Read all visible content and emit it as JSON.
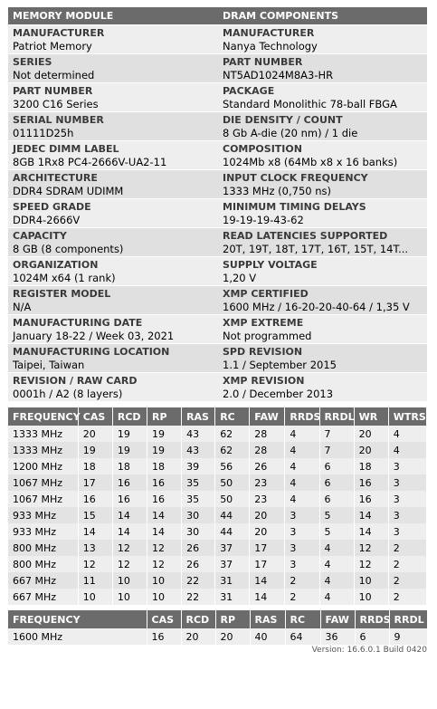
{
  "memory_module": {
    "title": "MEMORY MODULE",
    "fields": [
      {
        "label": "MANUFACTURER",
        "value": "Patriot Memory"
      },
      {
        "label": "SERIES",
        "value": "Not determined"
      },
      {
        "label": "PART NUMBER",
        "value": "3200 C16 Series"
      },
      {
        "label": "SERIAL NUMBER",
        "value": "01111D25h"
      },
      {
        "label": "JEDEC DIMM LABEL",
        "value": "8GB 1Rx8 PC4-2666V-UA2-11"
      },
      {
        "label": "ARCHITECTURE",
        "value": "DDR4 SDRAM UDIMM"
      },
      {
        "label": "SPEED GRADE",
        "value": "DDR4-2666V"
      },
      {
        "label": "CAPACITY",
        "value": "8 GB (8 components)"
      },
      {
        "label": "ORGANIZATION",
        "value": "1024M x64 (1 rank)"
      },
      {
        "label": "REGISTER MODEL",
        "value": "N/A"
      },
      {
        "label": "MANUFACTURING DATE",
        "value": "January 18-22 / Week 03, 2021"
      },
      {
        "label": "MANUFACTURING LOCATION",
        "value": "Taipei, Taiwan"
      },
      {
        "label": "REVISION / RAW CARD",
        "value": "0001h / A2 (8 layers)"
      }
    ]
  },
  "dram_components": {
    "title": "DRAM COMPONENTS",
    "fields": [
      {
        "label": "MANUFACTURER",
        "value": "Nanya Technology"
      },
      {
        "label": "PART NUMBER",
        "value": "NT5AD1024M8A3-HR"
      },
      {
        "label": "PACKAGE",
        "value": "Standard Monolithic 78-ball FBGA"
      },
      {
        "label": "DIE DENSITY / COUNT",
        "value": "8 Gb A-die (20 nm) / 1 die"
      },
      {
        "label": "COMPOSITION",
        "value": "1024Mb x8 (64Mb x8 x 16 banks)"
      },
      {
        "label": "INPUT CLOCK FREQUENCY",
        "value": "1333 MHz (0,750 ns)"
      },
      {
        "label": "MINIMUM TIMING DELAYS",
        "value": "19-19-19-43-62"
      },
      {
        "label": "READ LATENCIES SUPPORTED",
        "value": "20T, 19T, 18T, 17T, 16T, 15T, 14T..."
      },
      {
        "label": "SUPPLY VOLTAGE",
        "value": "1,20 V"
      },
      {
        "label": "XMP CERTIFIED",
        "value": "1600 MHz / 16-20-20-40-64 / 1,35 V"
      },
      {
        "label": "XMP EXTREME",
        "value": "Not programmed"
      },
      {
        "label": "SPD REVISION",
        "value": "1.1 / September 2015"
      },
      {
        "label": "XMP REVISION",
        "value": "2.0 / December 2013"
      }
    ]
  },
  "timings": {
    "headers": [
      "FREQUENCY",
      "CAS",
      "RCD",
      "RP",
      "RAS",
      "RC",
      "FAW",
      "RRDS",
      "RRDL",
      "WR",
      "WTRS"
    ],
    "rows": [
      [
        "1333 MHz",
        "20",
        "19",
        "19",
        "43",
        "62",
        "28",
        "4",
        "7",
        "20",
        "4"
      ],
      [
        "1333 MHz",
        "19",
        "19",
        "19",
        "43",
        "62",
        "28",
        "4",
        "7",
        "20",
        "4"
      ],
      [
        "1200 MHz",
        "18",
        "18",
        "18",
        "39",
        "56",
        "26",
        "4",
        "6",
        "18",
        "3"
      ],
      [
        "1067 MHz",
        "17",
        "16",
        "16",
        "35",
        "50",
        "23",
        "4",
        "6",
        "16",
        "3"
      ],
      [
        "1067 MHz",
        "16",
        "16",
        "16",
        "35",
        "50",
        "23",
        "4",
        "6",
        "16",
        "3"
      ],
      [
        "933 MHz",
        "15",
        "14",
        "14",
        "30",
        "44",
        "20",
        "3",
        "5",
        "14",
        "3"
      ],
      [
        "933 MHz",
        "14",
        "14",
        "14",
        "30",
        "44",
        "20",
        "3",
        "5",
        "14",
        "3"
      ],
      [
        "800 MHz",
        "13",
        "12",
        "12",
        "26",
        "37",
        "17",
        "3",
        "4",
        "12",
        "2"
      ],
      [
        "800 MHz",
        "12",
        "12",
        "12",
        "26",
        "37",
        "17",
        "3",
        "4",
        "12",
        "2"
      ],
      [
        "667 MHz",
        "11",
        "10",
        "10",
        "22",
        "31",
        "14",
        "2",
        "4",
        "10",
        "2"
      ],
      [
        "667 MHz",
        "10",
        "10",
        "10",
        "22",
        "31",
        "14",
        "2",
        "4",
        "10",
        "2"
      ]
    ]
  },
  "xmp_profile": {
    "headers": [
      "FREQUENCY",
      "CAS",
      "RCD",
      "RP",
      "RAS",
      "RC",
      "FAW",
      "RRDS",
      "RRDL"
    ],
    "rows": [
      [
        "1600 MHz",
        "16",
        "20",
        "20",
        "40",
        "64",
        "36",
        "6",
        "9"
      ]
    ]
  },
  "footer": {
    "version": "Version: 16.6.0.1 Build 0420"
  }
}
